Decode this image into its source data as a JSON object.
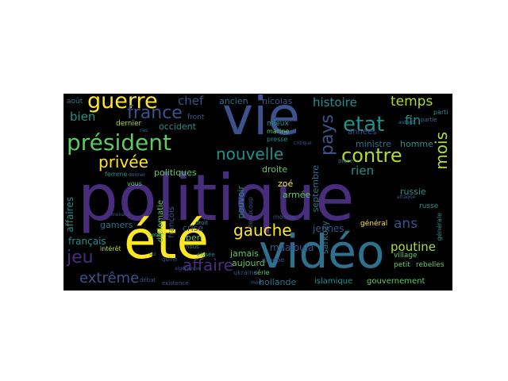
{
  "palette": {
    "yellow": "#fde725",
    "green": "#5ec962",
    "teal": "#21918c",
    "blue": "#3b528b",
    "purple": "#472d7b",
    "lime": "#addc30",
    "cyan": "#2c728e",
    "dark": "#440154"
  },
  "words": {
    "politique": "politique",
    "vie": "vie",
    "ete": "été",
    "video": "vidéo",
    "president": "président",
    "guerre": "guerre",
    "etat": "etat",
    "contre": "contre",
    "france": "france",
    "nouvelle": "nouvelle",
    "privee": "privée",
    "gauche": "gauche",
    "affaire": "affaire",
    "jeu": "jeu",
    "extreme": "extrême",
    "temps": "temps",
    "histoire": "histoire",
    "chef": "chef",
    "pays": "pays",
    "mois": "mois",
    "ans": "ans",
    "poutine": "poutine",
    "fin": "fin",
    "rien": "rien",
    "bien": "bien",
    "ancien": "ancien",
    "nicolas": "nicolas",
    "occident": "occident",
    "hollande": "hollande",
    "maaloula": "maaloula",
    "jeunes": "jeunes",
    "francais": "français",
    "gamers": "gamers",
    "jamais": "jamais",
    "aujourd": "aujourd",
    "sarkozy": "sarkozy",
    "russie": "russie",
    "ministre": "ministre",
    "homme": "homme",
    "annees": "années",
    "crise": "crise",
    "pen": "pen",
    "pouvoir": "pouvoir",
    "droite": "droite",
    "zoe": "zoé",
    "armee": "armée",
    "septembre": "septembre",
    "affaires": "affaires",
    "islamique": "islamique",
    "gouvernement": "gouvernement",
    "village": "village",
    "petit": "petit",
    "rebelles": "rebelles",
    "general": "général",
    "russe": "russe",
    "diplomatie": "diplomatie",
    "politiques": "politiques",
    "francois": "françois",
    "aout": "août",
    "front": "front",
    "dernier": "dernier",
    "mieux": "mieux",
    "marine": "marine",
    "serie": "série",
    "ukraine": "ukraine",
    "elysee": "élysée",
    "groupe": "groupe",
    "monde": "monde",
    "femme": "femme",
    "interet": "intérêt",
    "debat": "débat",
    "existence": "existence",
    "quinn": "quinn",
    "parti": "parti",
    "partie": "partie",
    "general2": "générale",
    "place": "place",
    "droit": "droit",
    "vous": "vous",
    "beaucoup": "beaucoup",
    "presse": "presse",
    "nous": "nous",
    "autant": "autant",
    "critique": "critique",
    "algerienne": "algérienne",
    "mort": "mort",
    "soi": "soi",
    "menace": "menace",
    "attaque": "attaque",
    "donner": "donner",
    "cas": "cas",
    "vote": "vote"
  }
}
